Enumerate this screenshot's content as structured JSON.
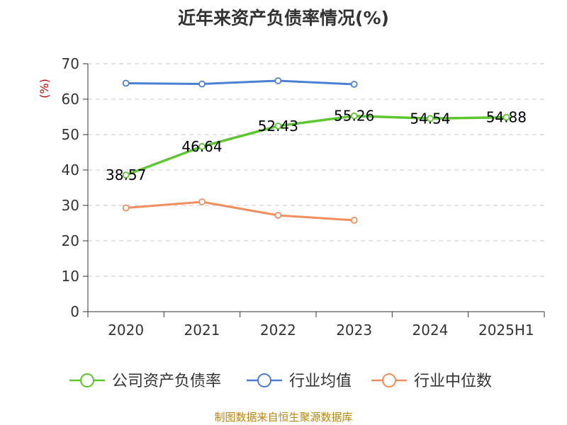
{
  "chart_data": {
    "type": "line",
    "title": "近年来资产负债率情况(%)",
    "ylabel": "(%)",
    "xlabel": "",
    "categories": [
      "2020",
      "2021",
      "2022",
      "2023",
      "2024",
      "2025H1"
    ],
    "ylim": [
      0,
      70
    ],
    "yticks": [
      0,
      10,
      20,
      30,
      40,
      50,
      60,
      70
    ],
    "grid": true,
    "legend_position": "bottom",
    "series": [
      {
        "name": "公司资产负债率",
        "color": "#5cc72e",
        "values": [
          38.57,
          46.64,
          52.43,
          55.26,
          54.54,
          54.88
        ],
        "data_labels": [
          "38.57",
          "46.64",
          "52.43",
          "55.26",
          "54.54",
          "54.88"
        ]
      },
      {
        "name": "行业均值",
        "color": "#4a7fd6",
        "values": [
          64.5,
          64.3,
          65.2,
          64.2,
          null,
          null
        ]
      },
      {
        "name": "行业中位数",
        "color": "#f28e5c",
        "values": [
          29.3,
          31.0,
          27.2,
          25.8,
          null,
          null
        ]
      }
    ],
    "source": "制图数据来自恒生聚源数据库"
  }
}
